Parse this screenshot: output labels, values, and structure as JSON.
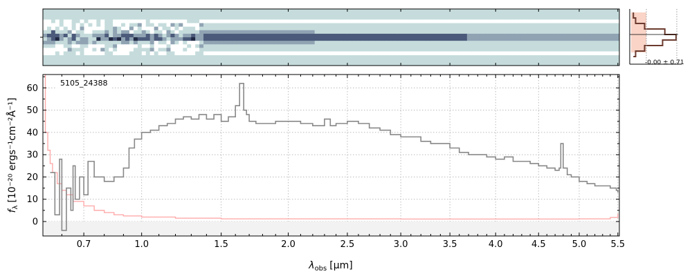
{
  "chart_data": [
    {
      "type": "heatmap",
      "panel": "2d-spectrum",
      "colormap": [
        "#ffffff",
        "#c6dcdc",
        "#8fa3b3",
        "#4b5a7a",
        "#222a45"
      ],
      "background_color": "#c6dcdc",
      "trace_center_row": 0.5
    },
    {
      "type": "line",
      "panel": "1d-spectrum",
      "label": "5105_24388",
      "xlabel_main": "λ",
      "xlabel_sub": "obs",
      "xlabel_unit": "[μm]",
      "ylabel_main": "f",
      "ylabel_sub": "λ",
      "ylabel_unit": "[10⁻²⁰ ergs⁻¹cm⁻²Å⁻¹]",
      "x_scale": "sqrt",
      "xlim": [
        0.52,
        5.52
      ],
      "ylim": [
        -6.5,
        66
      ],
      "x_ticks": [
        0.7,
        1.0,
        1.5,
        2.0,
        2.5,
        3.0,
        3.5,
        4.0,
        4.5,
        5.0,
        5.5
      ],
      "x_tick_labels": [
        "0.7",
        "1.0",
        "1.5",
        "2.0",
        "2.5",
        "3.0",
        "3.5",
        "4.0",
        "4.5",
        "5.0",
        "5.5"
      ],
      "y_ticks": [
        0,
        10,
        20,
        30,
        40,
        50,
        60
      ],
      "grid": true,
      "series": [
        {
          "role": "flux",
          "color": "#888888",
          "x": [
            0.55,
            0.57,
            0.59,
            0.6,
            0.62,
            0.64,
            0.65,
            0.66,
            0.68,
            0.7,
            0.72,
            0.75,
            0.8,
            0.85,
            0.9,
            0.93,
            0.96,
            1.0,
            1.05,
            1.1,
            1.15,
            1.2,
            1.25,
            1.3,
            1.35,
            1.4,
            1.45,
            1.5,
            1.55,
            1.6,
            1.63,
            1.66,
            1.68,
            1.7,
            1.75,
            1.8,
            1.9,
            2.0,
            2.1,
            2.2,
            2.3,
            2.35,
            2.4,
            2.5,
            2.6,
            2.7,
            2.8,
            2.9,
            3.0,
            3.1,
            3.2,
            3.3,
            3.4,
            3.5,
            3.6,
            3.7,
            3.8,
            3.9,
            4.0,
            4.1,
            4.2,
            4.3,
            4.4,
            4.5,
            4.6,
            4.7,
            4.75,
            4.77,
            4.8,
            4.85,
            4.9,
            5.0,
            5.1,
            5.2,
            5.3,
            5.4,
            5.48,
            5.5
          ],
          "y": [
            22,
            3,
            28,
            -4,
            15,
            5,
            25,
            10,
            20,
            12,
            27,
            20,
            18,
            20,
            24,
            33,
            37,
            40,
            41,
            43,
            44,
            46,
            47,
            46,
            48,
            46,
            48,
            45,
            47,
            52,
            62,
            50,
            48,
            45,
            44,
            44,
            45,
            45,
            44,
            43,
            46,
            43,
            44,
            45,
            44,
            42,
            41,
            39,
            38,
            38,
            36,
            35,
            35,
            33,
            31,
            30,
            30,
            29,
            28,
            29,
            27,
            27,
            26,
            25,
            24,
            23,
            24,
            35,
            24,
            21,
            20,
            18,
            17,
            16,
            16,
            15,
            14,
            13
          ]
        },
        {
          "role": "uncertainty",
          "color": "#ffaaaa",
          "x": [
            0.525,
            0.53,
            0.54,
            0.55,
            0.56,
            0.58,
            0.6,
            0.62,
            0.65,
            0.7,
            0.75,
            0.8,
            0.85,
            0.9,
            1.0,
            1.2,
            1.5,
            2.0,
            3.0,
            4.0,
            5.0,
            5.4,
            5.5
          ],
          "y": [
            66,
            40,
            32,
            26,
            22,
            17,
            14,
            12,
            9,
            7,
            5,
            4,
            3,
            2.5,
            2,
            1.5,
            1.2,
            1.2,
            1.1,
            1.1,
            1.2,
            1.8,
            3.5
          ]
        }
      ]
    },
    {
      "type": "area",
      "panel": "spatial-profile",
      "annotation": "-0.00 ± 0.71",
      "fill_color": "#f9d4c7",
      "line_color": "#6b3a2e"
    }
  ]
}
